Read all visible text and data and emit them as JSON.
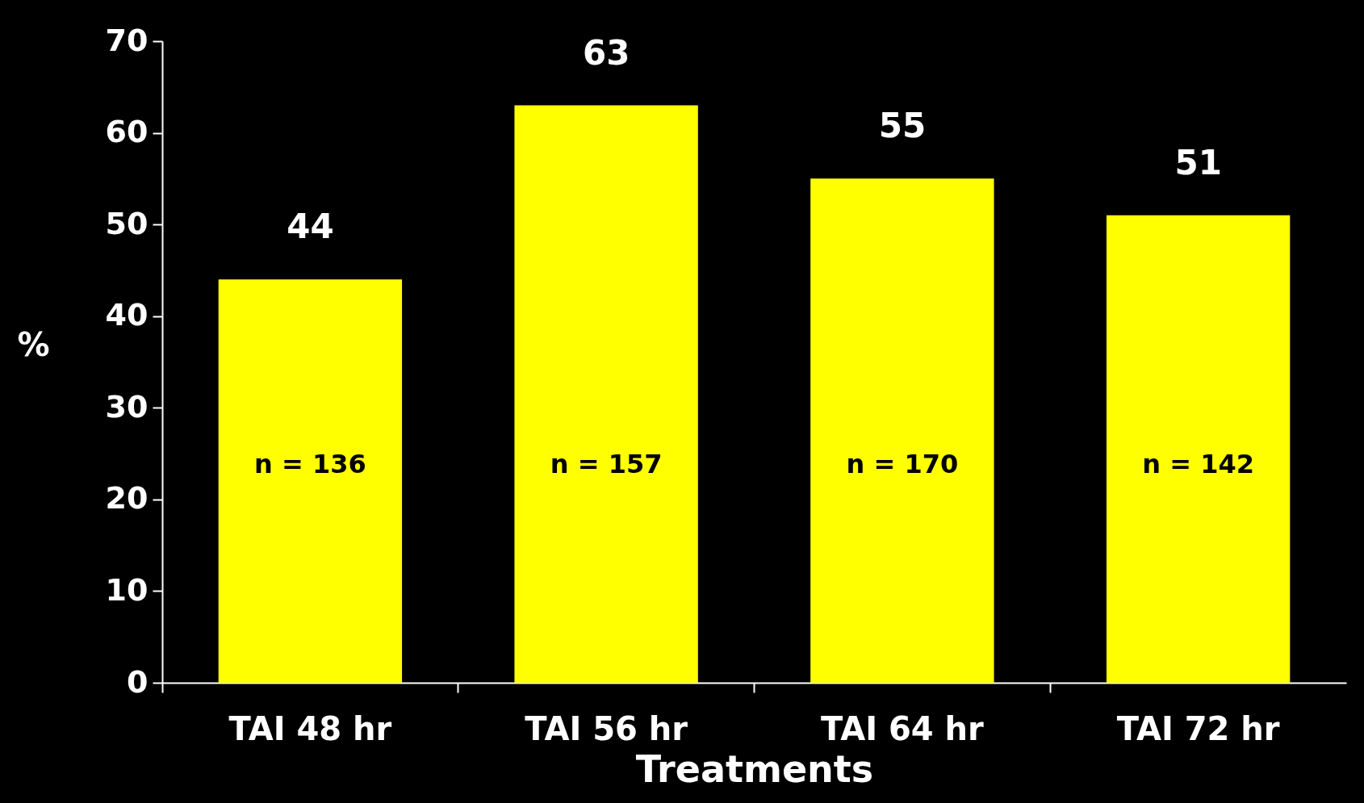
{
  "chart_data": {
    "type": "bar",
    "xlabel": "Treatments",
    "ylabel": "%",
    "categories": [
      "TAI 48 hr",
      "TAI 56 hr",
      "TAI 64 hr",
      "TAI 72 hr"
    ],
    "values": [
      44,
      63,
      55,
      51
    ],
    "color": "#ffff00",
    "ylim": [
      0,
      70
    ],
    "yticks": [
      0,
      10,
      20,
      30,
      40,
      50,
      60,
      70
    ],
    "grid": false,
    "data_labels": true,
    "annotations": [
      "n = 136",
      "n = 157",
      "n = 170",
      "n = 142"
    ]
  }
}
